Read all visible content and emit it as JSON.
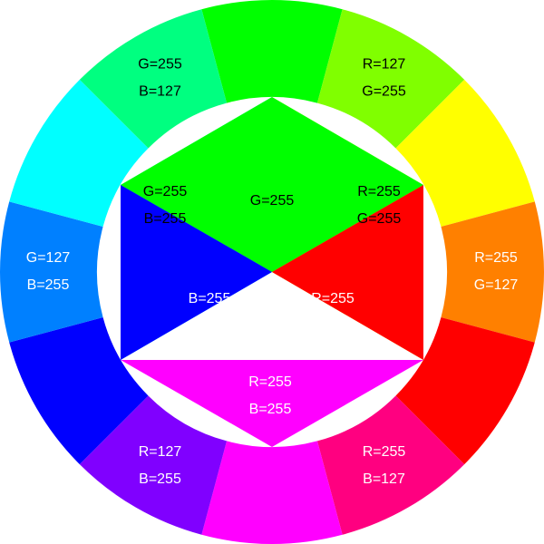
{
  "ring_segments": [
    {
      "id": "green",
      "color": "#00ff00",
      "lines": []
    },
    {
      "id": "chartreuse",
      "color": "#80ff00",
      "lines": [
        "R=127",
        "G=255"
      ],
      "text_color": "#000000"
    },
    {
      "id": "yellow",
      "color": "#ffff00",
      "lines": []
    },
    {
      "id": "orange",
      "color": "#ff8000",
      "lines": [
        "R=255",
        "G=127"
      ],
      "text_color": "#ffffff"
    },
    {
      "id": "red",
      "color": "#ff0000",
      "lines": []
    },
    {
      "id": "rose",
      "color": "#ff0080",
      "lines": [
        "R=255",
        "B=127"
      ],
      "text_color": "#ffffff"
    },
    {
      "id": "magenta",
      "color": "#ff00ff",
      "lines": []
    },
    {
      "id": "violet",
      "color": "#8000ff",
      "lines": [
        "R=127",
        "B=255"
      ],
      "text_color": "#ffffff"
    },
    {
      "id": "blue",
      "color": "#0000ff",
      "lines": []
    },
    {
      "id": "azure",
      "color": "#0080ff",
      "lines": [
        "G=127",
        "B=255"
      ],
      "text_color": "#ffffff"
    },
    {
      "id": "cyan",
      "color": "#00ffff",
      "lines": []
    },
    {
      "id": "spring-green",
      "color": "#00ff80",
      "lines": [
        "G=255",
        "B=127"
      ],
      "text_color": "#000000"
    }
  ],
  "inner_regions": {
    "green": {
      "color": "#00ff00",
      "lines": [
        "G=255"
      ],
      "text_color": "#000000"
    },
    "red": {
      "color": "#ff0000",
      "lines": [
        "R=255"
      ],
      "text_color": "#ffffff"
    },
    "blue": {
      "color": "#0000ff",
      "lines": [
        "B=255"
      ],
      "text_color": "#ffffff"
    },
    "yellow": {
      "color": "#ffff00",
      "lines": [
        "R=255",
        "G=255"
      ],
      "text_color": "#000000"
    },
    "magenta": {
      "color": "#ff00ff",
      "lines": [
        "R=255",
        "B=255"
      ],
      "text_color": "#ffffff"
    },
    "cyan": {
      "color": "#00ffff",
      "lines": [
        "G=255",
        "B=255"
      ],
      "text_color": "#000000"
    }
  }
}
